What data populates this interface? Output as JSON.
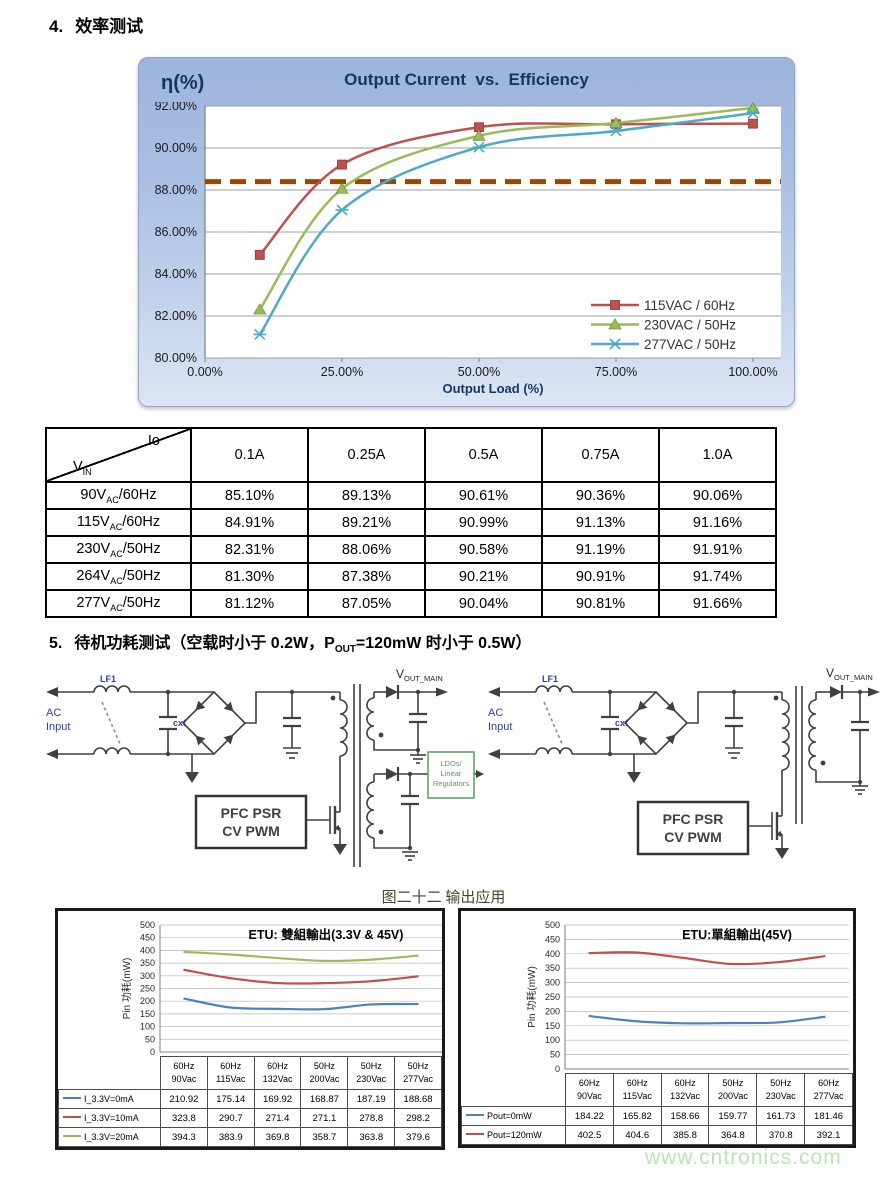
{
  "page": {
    "section4_number": "4.",
    "section4_title": "效率测试",
    "section5_number": "5.",
    "section5_title_pre": "待机功耗测试（空载时小于 0.2W，P",
    "section5_title_sub": "OUT",
    "section5_title_post": "=120mW 时小于 0.5W）",
    "figure_caption": "图二十二 输出应用",
    "watermark": "www.cntronics.com"
  },
  "efficiency_table": {
    "corner_top": "Io",
    "corner_bottom_main": "V",
    "corner_bottom_sub": "IN",
    "columns": [
      "0.1A",
      "0.25A",
      "0.5A",
      "0.75A",
      "1.0A"
    ],
    "rows": [
      {
        "label_pre": "90V",
        "label_sub": "AC",
        "label_post": "/60Hz",
        "values": [
          "85.10%",
          "89.13%",
          "90.61%",
          "90.36%",
          "90.06%"
        ]
      },
      {
        "label_pre": "115V",
        "label_sub": "AC",
        "label_post": "/60Hz",
        "values": [
          "84.91%",
          "89.21%",
          "90.99%",
          "91.13%",
          "91.16%"
        ]
      },
      {
        "label_pre": "230V",
        "label_sub": "AC",
        "label_post": "/50Hz",
        "values": [
          "82.31%",
          "88.06%",
          "90.58%",
          "91.19%",
          "91.91%"
        ]
      },
      {
        "label_pre": "264V",
        "label_sub": "AC",
        "label_post": "/50Hz",
        "values": [
          "81.30%",
          "87.38%",
          "90.21%",
          "90.91%",
          "91.74%"
        ]
      },
      {
        "label_pre": "277V",
        "label_sub": "AC",
        "label_post": "/50Hz",
        "values": [
          "81.12%",
          "87.05%",
          "90.04%",
          "90.81%",
          "91.66%"
        ]
      }
    ]
  },
  "circuit_left": {
    "ac_line1": "AC",
    "ac_line2": "Input",
    "lf1": "LF1",
    "cxf": "cxf",
    "controller_line1": "PFC PSR",
    "controller_line2": "CV PWM",
    "vout_main": "V",
    "vout_sub": "OUT_MAIN",
    "ldo_line1": "LDOs/",
    "ldo_line2": "Linear",
    "ldo_line3": "Regulators"
  },
  "circuit_right": {
    "ac_line1": "AC",
    "ac_line2": "Input",
    "lf1": "LF1",
    "cxf": "cxf",
    "controller_line1": "PFC PSR",
    "controller_line2": "CV PWM",
    "vout_main": "V",
    "vout_sub": "OUT_MAIN"
  },
  "chart_data": [
    {
      "type": "line",
      "title": "Output Current  vs.  Efficiency",
      "y_axis_label": "η(%)",
      "xlabel": "Output Load (%)",
      "x_percent": [
        10,
        25,
        50,
        75,
        100
      ],
      "x_ticks": [
        "0.00%",
        "25.00%",
        "50.00%",
        "75.00%",
        "100.00%"
      ],
      "x_tick_values": [
        0,
        25,
        50,
        75,
        100
      ],
      "ylim": [
        80,
        92
      ],
      "y_tick_step": 2,
      "y_ticks": [
        "92.00%",
        "90.00%",
        "88.00%",
        "86.00%",
        "84.00%",
        "82.00%",
        "80.00%"
      ],
      "grid": true,
      "legend_position": "inside-bottom-right",
      "reference_line": {
        "y": 88.4,
        "color": "#974806",
        "style": "dashed"
      },
      "series": [
        {
          "name": "115VAC / 60Hz",
          "color": "#c0504d",
          "marker": "square",
          "values": [
            84.91,
            89.21,
            90.99,
            91.13,
            91.16
          ]
        },
        {
          "name": "230VAC / 50Hz",
          "color": "#9bbb59",
          "marker": "triangle",
          "values": [
            82.31,
            88.06,
            90.58,
            91.19,
            91.91
          ]
        },
        {
          "name": "277VAC / 50Hz",
          "color": "#4bacc6",
          "marker": "x",
          "values": [
            81.12,
            87.05,
            90.04,
            90.81,
            91.66
          ]
        }
      ]
    },
    {
      "type": "line",
      "title": "ETU: 雙組輸出(3.3V & 45V)",
      "ylabel": "Pin 功耗(mW)",
      "ylim": [
        0,
        500
      ],
      "y_tick_step": 50,
      "grid": true,
      "legend_position": "data-table-left",
      "categories_line1": [
        "60Hz",
        "60Hz",
        "60Hz",
        "50Hz",
        "50Hz",
        "50Hz"
      ],
      "categories_line2": [
        "90Vac",
        "115Vac",
        "132Vac",
        "200Vac",
        "230Vac",
        "277Vac"
      ],
      "series": [
        {
          "name": "I_3.3V=0mA",
          "color": "#4f81bd",
          "values": [
            210.92,
            175.14,
            169.92,
            168.87,
            187.19,
            188.68
          ]
        },
        {
          "name": "I_3.3V=10mA",
          "color": "#c0504d",
          "values": [
            323.8,
            290.7,
            271.4,
            271.1,
            278.8,
            298.2
          ]
        },
        {
          "name": "I_3.3V=20mA",
          "color": "#9bbb59",
          "values": [
            394.3,
            383.9,
            369.8,
            358.7,
            363.8,
            379.6
          ]
        }
      ]
    },
    {
      "type": "line",
      "title": "ETU:單組輸出(45V)",
      "ylabel": "Pin 功耗(mW)",
      "ylim": [
        0,
        500
      ],
      "y_tick_step": 50,
      "grid": true,
      "legend_position": "data-table-left",
      "categories_line1": [
        "60Hz",
        "60Hz",
        "60Hz",
        "50Hz",
        "50Hz",
        "60Hz"
      ],
      "categories_line2": [
        "90Vac",
        "115Vac",
        "132Vac",
        "200Vac",
        "230Vac",
        "277Vac"
      ],
      "series": [
        {
          "name": "Pout=0mW",
          "color": "#4f81bd",
          "values": [
            184.22,
            165.82,
            158.66,
            159.77,
            161.73,
            181.46
          ]
        },
        {
          "name": "Pout=120mW",
          "color": "#c0504d",
          "values": [
            402.5,
            404.6,
            385.8,
            364.8,
            370.8,
            392.1
          ]
        }
      ]
    }
  ]
}
